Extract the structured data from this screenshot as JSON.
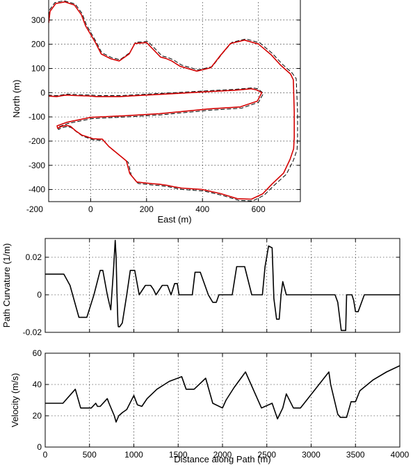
{
  "chart_data": [
    {
      "type": "line",
      "xlabel": "East (m)",
      "ylabel": "North (m)",
      "xlim": [
        -150,
        750
      ],
      "ylim": [
        -450,
        400
      ],
      "xticks": [
        -200,
        0,
        200,
        400,
        600
      ],
      "xtick_labels": [
        "-200",
        "0",
        "200",
        "400",
        "600"
      ],
      "yticks": [
        300,
        200,
        100,
        0,
        -100,
        -200,
        -300,
        -400
      ],
      "yticks_labels": [
        "300",
        "200",
        "100",
        "0",
        "-100",
        "-200",
        "-300",
        "-400"
      ],
      "grid": true,
      "series": [
        {
          "style": "dashed",
          "color": "#000000",
          "x": [
            -150,
            -148,
            -128,
            -95,
            -55,
            -30,
            -15,
            20,
            40,
            75,
            105,
            140,
            160,
            205,
            240,
            255,
            275,
            295,
            325,
            385,
            435,
            470,
            505,
            555,
            605,
            650,
            685,
            720,
            735,
            740,
            740,
            738,
            725,
            700,
            655,
            620,
            580,
            530,
            470,
            405,
            330,
            300,
            280,
            250,
            225,
            170,
            145,
            135,
            70,
            45,
            10,
            -15,
            -28,
            -50,
            -70,
            -85,
            -103,
            -115,
            -116,
            -80,
            5,
            130,
            250,
            340,
            430,
            540,
            600,
            618,
            598,
            580,
            520,
            420,
            300,
            220,
            155,
            110,
            25,
            5,
            -45,
            -85,
            -118,
            -150
          ],
          "y": [
            290,
            340,
            372,
            380,
            366,
            326,
            280,
            210,
            165,
            145,
            136,
            165,
            208,
            212,
            170,
            152,
            146,
            136,
            114,
            94,
            108,
            160,
            208,
            222,
            206,
            162,
            118,
            82,
            58,
            -80,
            -188,
            -236,
            -280,
            -337,
            -384,
            -424,
            -447,
            -445,
            -424,
            -406,
            -400,
            -394,
            -389,
            -384,
            -382,
            -375,
            -340,
            -288,
            -228,
            -197,
            -195,
            -185,
            -180,
            -162,
            -144,
            -140,
            -145,
            -152,
            -142,
            -127,
            -107,
            -100,
            -92,
            -82,
            -72,
            -64,
            -40,
            -3,
            16,
            20,
            14,
            8,
            0,
            -5,
            -9,
            -12,
            -12,
            -10,
            -8,
            -6,
            -12,
            -10
          ]
        },
        {
          "style": "solid",
          "color": "#d40000",
          "x": [
            -150,
            -145,
            -125,
            -92,
            -58,
            -33,
            -18,
            18,
            38,
            72,
            102,
            138,
            158,
            200,
            235,
            250,
            270,
            290,
            320,
            380,
            430,
            465,
            500,
            550,
            600,
            645,
            680,
            715,
            725,
            728,
            728,
            726,
            713,
            690,
            648,
            615,
            575,
            525,
            465,
            400,
            325,
            295,
            275,
            245,
            220,
            165,
            140,
            128,
            65,
            42,
            8,
            -18,
            -32,
            -54,
            -72,
            -88,
            -105,
            -118,
            -120,
            -84,
            0,
            125,
            245,
            335,
            425,
            535,
            596,
            612,
            592,
            574,
            515,
            415,
            295,
            215,
            150,
            105,
            20,
            0,
            -50,
            -90,
            -122,
            -150
          ],
          "y": [
            288,
            336,
            368,
            375,
            362,
            322,
            276,
            205,
            160,
            140,
            131,
            160,
            203,
            207,
            165,
            147,
            141,
            131,
            109,
            89,
            103,
            155,
            203,
            217,
            201,
            157,
            113,
            77,
            53,
            -80,
            -186,
            -232,
            -276,
            -332,
            -378,
            -418,
            -440,
            -438,
            -417,
            -400,
            -394,
            -388,
            -383,
            -378,
            -376,
            -369,
            -334,
            -282,
            -222,
            -192,
            -190,
            -180,
            -175,
            -157,
            -139,
            -135,
            -140,
            -147,
            -137,
            -122,
            -102,
            -95,
            -87,
            -77,
            -67,
            -59,
            -35,
            0,
            12,
            16,
            10,
            4,
            -4,
            -9,
            -13,
            -16,
            -16,
            -14,
            -12,
            -10,
            -16,
            -14
          ]
        }
      ]
    },
    {
      "type": "line",
      "xlabel": "",
      "ylabel": "Path Curvature (1/m)",
      "xlim": [
        0,
        4000
      ],
      "ylim": [
        -0.02,
        0.03
      ],
      "xticks": [
        0,
        500,
        1000,
        1500,
        2000,
        2500,
        3000,
        3500,
        4000
      ],
      "yticks": [
        0.02,
        0,
        -0.02
      ],
      "yticks_labels": [
        "0.02",
        "0",
        "-0.02"
      ],
      "grid": true,
      "series": [
        {
          "x": [
            0,
            210,
            280,
            380,
            470,
            550,
            620,
            650,
            700,
            740,
            770,
            790,
            800,
            810,
            820,
            825,
            840,
            870,
            920,
            960,
            1010,
            1060,
            1130,
            1190,
            1220,
            1250,
            1320,
            1380,
            1420,
            1460,
            1490,
            1510,
            1540,
            1570,
            1620,
            1660,
            1690,
            1750,
            1840,
            1890,
            1930,
            1960,
            1990,
            2030,
            2070,
            2110,
            2160,
            2250,
            2330,
            2450,
            2480,
            2520,
            2560,
            2580,
            2610,
            2640,
            2660,
            2680,
            2720,
            2740,
            2780,
            2800,
            2830,
            2850,
            2880,
            2920,
            2950,
            3000,
            3260,
            3270,
            3300,
            3340,
            3390,
            3400,
            3430,
            3460,
            3480,
            3500,
            3530,
            3600,
            4000
          ],
          "y": [
            0.011,
            0.011,
            0.005,
            -0.012,
            -0.012,
            0.0,
            0.013,
            0.013,
            0.0,
            -0.008,
            0.013,
            0.029,
            0.02,
            0.0,
            -0.015,
            -0.017,
            -0.017,
            -0.015,
            0.0,
            0.013,
            0.013,
            0.0,
            0.005,
            0.005,
            0.003,
            0.0,
            0.005,
            0.005,
            0.0,
            0.006,
            0.006,
            0.0,
            0.0,
            0.0,
            0.0,
            0.0,
            0.012,
            0.012,
            0.0,
            -0.004,
            -0.004,
            0.0,
            0.0,
            0.0,
            0.0,
            0.0,
            0.015,
            0.015,
            0.0,
            0.0,
            0.015,
            0.026,
            0.025,
            -0.002,
            -0.013,
            -0.013,
            0.0,
            0.007,
            0.0,
            0.0,
            0.0,
            0.0,
            0.0,
            0.0,
            0.0,
            0.0,
            0.0,
            0.0,
            0.0,
            0.0,
            -0.004,
            -0.019,
            -0.019,
            0.0,
            0.0,
            0.0,
            -0.003,
            -0.009,
            -0.009,
            0.0,
            0.0
          ]
        }
      ]
    },
    {
      "type": "line",
      "xlabel": "Distance along Path (m)",
      "ylabel": "Velocity (m/s)",
      "xlim": [
        0,
        4000
      ],
      "ylim": [
        0,
        60
      ],
      "xticks": [
        0,
        500,
        1000,
        1500,
        2000,
        2500,
        3000,
        3500,
        4000
      ],
      "xtick_labels": [
        "0",
        "500",
        "1000",
        "1500",
        "2000",
        "2500",
        "3000",
        "3500",
        "4000"
      ],
      "yticks": [
        60,
        40,
        20,
        0
      ],
      "yticks_labels": [
        "60",
        "40",
        "20",
        "0"
      ],
      "grid": true,
      "series": [
        {
          "x": [
            0,
            200,
            340,
            400,
            520,
            570,
            590,
            620,
            700,
            720,
            780,
            800,
            830,
            870,
            920,
            1000,
            1040,
            1090,
            1150,
            1260,
            1400,
            1540,
            1590,
            1680,
            1810,
            1890,
            2000,
            2040,
            2130,
            2260,
            2440,
            2480,
            2560,
            2620,
            2680,
            2720,
            2800,
            2880,
            2950,
            3200,
            3220,
            3300,
            3330,
            3400,
            3450,
            3500,
            3550,
            3700,
            3850,
            4000
          ],
          "y": [
            28,
            28,
            37,
            25,
            25,
            28,
            26,
            26,
            31,
            28,
            20,
            16,
            20,
            22,
            24,
            33,
            27,
            26,
            31,
            37,
            42,
            45,
            37,
            37,
            44,
            28,
            25,
            30,
            38,
            48,
            25,
            26,
            28,
            18,
            25,
            34,
            25,
            25,
            30,
            48,
            40,
            21,
            19,
            19,
            29,
            29,
            36,
            43,
            48,
            52
          ]
        }
      ]
    }
  ]
}
